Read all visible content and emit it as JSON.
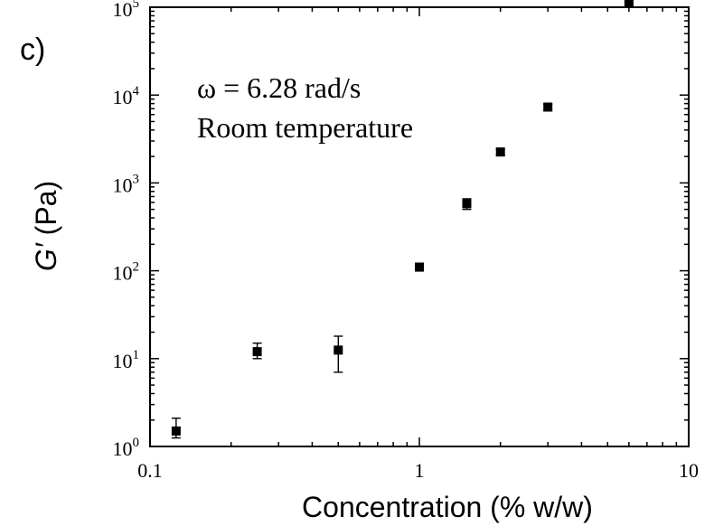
{
  "panel_label": "c)",
  "chart_data": {
    "type": "scatter",
    "x_scale": "log",
    "y_scale": "log",
    "xlim": [
      0.1,
      10
    ],
    "ylim": [
      1,
      100000
    ],
    "xlabel": "Concentration (% w/w)",
    "ylabel_italic": "G′",
    "ylabel_unit": " (Pa)",
    "annotations": [
      "ω = 6.28 rad/s",
      "Room temperature"
    ],
    "x_ticks": [
      {
        "value": 0.1,
        "label": "0.1"
      },
      {
        "value": 1,
        "label": "1"
      },
      {
        "value": 10,
        "label": "10"
      }
    ],
    "y_ticks": [
      {
        "value": 1,
        "base": "10",
        "exp": "0"
      },
      {
        "value": 10,
        "base": "10",
        "exp": "1"
      },
      {
        "value": 100,
        "base": "10",
        "exp": "2"
      },
      {
        "value": 1000,
        "base": "10",
        "exp": "3"
      },
      {
        "value": 10000,
        "base": "10",
        "exp": "4"
      },
      {
        "value": 100000,
        "base": "10",
        "exp": "5"
      }
    ],
    "marker_color": "#000000",
    "points": [
      {
        "x": 0.125,
        "y": 1.5,
        "err_low": 1.25,
        "err_high": 2.1
      },
      {
        "x": 0.25,
        "y": 12,
        "err_low": 10,
        "err_high": 15
      },
      {
        "x": 0.5,
        "y": 12.5,
        "err_low": 7,
        "err_high": 18
      },
      {
        "x": 1.0,
        "y": 110,
        "err_low": 100,
        "err_high": 122
      },
      {
        "x": 1.5,
        "y": 580,
        "err_low": 500,
        "err_high": 660
      },
      {
        "x": 2.0,
        "y": 2250,
        "err_low": 2050,
        "err_high": 2450
      },
      {
        "x": 3.0,
        "y": 7300,
        "err_low": 6700,
        "err_high": 7900
      },
      {
        "x": 6.0,
        "y": 112000,
        "err_low": 105000,
        "err_high": 120000
      }
    ]
  }
}
